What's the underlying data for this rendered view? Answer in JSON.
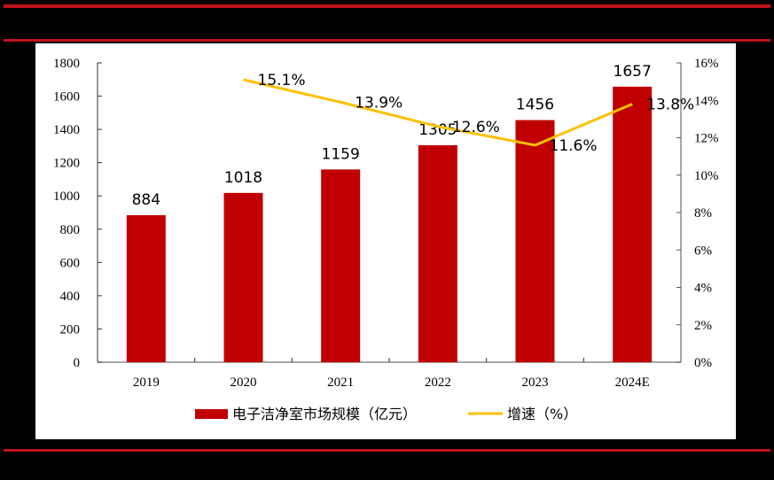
{
  "chart_data": {
    "type": "bar+line",
    "title": "",
    "categories": [
      "2019",
      "2020",
      "2021",
      "2022",
      "2023",
      "2024E"
    ],
    "series": [
      {
        "name": "电子洁净室市场规模（亿元）",
        "type": "bar",
        "axis": "left",
        "color": "#c00000",
        "values": [
          884,
          1018,
          1159,
          1305,
          1456,
          1657
        ]
      },
      {
        "name": "增速（%）",
        "type": "line",
        "axis": "right",
        "color": "#ffc000",
        "values": [
          null,
          15.1,
          13.9,
          12.6,
          11.6,
          13.8
        ]
      }
    ],
    "bar_labels": [
      "884",
      "1018",
      "1159",
      "1305",
      "1456",
      "1657"
    ],
    "line_labels": [
      "",
      "15.1%",
      "13.9%",
      "12.6%",
      "11.6%",
      "13.8%"
    ],
    "y_left": {
      "ticks": [
        "0",
        "200",
        "400",
        "600",
        "800",
        "1000",
        "1200",
        "1400",
        "1600",
        "1800"
      ],
      "ylim": [
        0,
        1800
      ]
    },
    "y_right": {
      "ticks": [
        "0%",
        "2%",
        "4%",
        "6%",
        "8%",
        "10%",
        "12%",
        "14%",
        "16%"
      ],
      "ylim": [
        0,
        16
      ]
    },
    "xlabel": "",
    "ylabel": "",
    "grid": false,
    "legend_position": "bottom"
  },
  "legend": {
    "bar_label": "电子洁净室市场规模（亿元）",
    "line_label": "增速（%）"
  },
  "colors": {
    "rule": "#c0121c",
    "bar": "#c00000",
    "line": "#ffc000"
  }
}
